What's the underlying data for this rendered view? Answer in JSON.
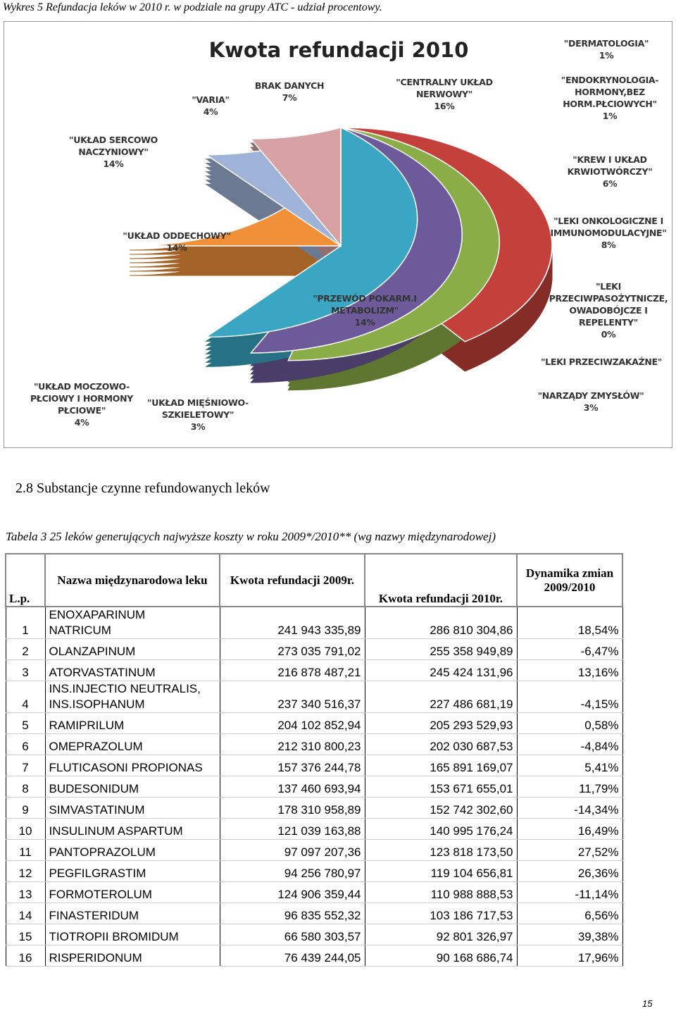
{
  "caption": "Wykres 5 Refundacja leków w 2010 r. w podziale na grupy ATC - udział procentowy.",
  "chart_data": {
    "type": "pie",
    "title": "Kwota refundacji 2010",
    "categories": [
      "\"CENTRALNY UKŁAD NERWOWY\"",
      "\"DERMATOLOGIA\"",
      "\"ENDOKRYNOLOGIA-HORMONY,BEZ HORM.PŁCIOWYCH\"",
      "\"KREW I UKŁAD KRWIOTWÓRCZY\"",
      "\"LEKI ONKOLOGICZNE I IMMUNOMODULACYJNE\"",
      "\"LEKI PRZECIWPASOŻYTNICZE, OWADOBÓJCZE I REPELENTY\"",
      "\"LEKI PRZECIWZAKAŹNE\"",
      "\"NARZĄDY ZMYSŁÓW\"",
      "\"PRZEWÓD POKARM.I METABOLIZM\"",
      "\"UKŁAD MIĘŚNIOWO-SZKIELETOWY\"",
      "\"UKŁAD MOCZOWO-PŁCIOWY I HORMONY PŁCIOWE\"",
      "\"UKŁAD ODDECHOWY\"",
      "\"UKŁAD SERCOWO NACZYNIOWY\"",
      "\"VARIA\"",
      "BRAK DANYCH"
    ],
    "values": [
      16,
      1,
      1,
      6,
      8,
      0,
      5,
      3,
      14,
      3,
      4,
      14,
      14,
      4,
      7
    ],
    "value_labels": [
      "16%",
      "1%",
      "1%",
      "6%",
      "8%",
      "0%",
      null,
      "3%",
      "14%",
      "3%",
      "4%",
      "14%",
      "14%",
      "4%",
      "7%"
    ],
    "colors": [
      "#3d6ba8",
      "#5f8a35",
      "#8aa33a",
      "#5e4a86",
      "#318da5",
      "#213e62",
      "#6e1f1f",
      "#c4403a",
      "#8bad48",
      "#6d5a9a",
      "#3aa6c4",
      "#f0913a",
      "#9fb2d8",
      "#d8a1a3",
      "#c5d5a6"
    ]
  },
  "section_heading": "2.8 Substancje czynne refundowanych leków",
  "table": {
    "caption": "Tabela 3 25 leków generujących najwyższe koszty w roku 2009*/2010** (wg nazwy międzynarodowej)",
    "headers": [
      "L.p.",
      "Nazwa międzynarodowa leku",
      "Kwota refundacji 2009r.",
      "Kwota refundacji 2010r.",
      "Dynamika zmian 2009/2010"
    ],
    "rows": [
      [
        "1",
        "ENOXAPARINUM\nNATRICUM",
        "241 943 335,89",
        "286 810 304,86",
        "18,54%"
      ],
      [
        "2",
        "OLANZAPINUM",
        "273 035 791,02",
        "255 358 949,89",
        "-6,47%"
      ],
      [
        "3",
        "ATORVASTATINUM",
        "216 878 487,21",
        "245 424 131,96",
        "13,16%"
      ],
      [
        "4",
        "INS.INJECTIO NEUTRALIS,\nINS.ISOPHANUM",
        "237 340 516,37",
        "227 486 681,19",
        "-4,15%"
      ],
      [
        "5",
        "RAMIPRILUM",
        "204 102 852,94",
        "205 293 529,93",
        "0,58%"
      ],
      [
        "6",
        "OMEPRAZOLUM",
        "212 310 800,23",
        "202 030 687,53",
        "-4,84%"
      ],
      [
        "7",
        "FLUTICASONI PROPIONAS",
        "157 376 244,78",
        "165 891 169,07",
        "5,41%"
      ],
      [
        "8",
        "BUDESONIDUM",
        "137 460 693,94",
        "153 671 655,01",
        "11,79%"
      ],
      [
        "9",
        "SIMVASTATINUM",
        "178 310 958,89",
        "152 742 302,60",
        "-14,34%"
      ],
      [
        "10",
        "INSULINUM ASPARTUM",
        "121 039 163,88",
        "140 995 176,24",
        "16,49%"
      ],
      [
        "11",
        "PANTOPRAZOLUM",
        "97 097 207,36",
        "123 818 173,50",
        "27,52%"
      ],
      [
        "12",
        "PEGFILGRASTIM",
        "94 256 780,97",
        "119 104 656,81",
        "26,36%"
      ],
      [
        "13",
        "FORMOTEROLUM",
        "124 906 359,44",
        "110 988 888,53",
        "-11,14%"
      ],
      [
        "14",
        "FINASTERIDUM",
        "96 835 552,32",
        "103 186 717,53",
        "6,56%"
      ],
      [
        "15",
        "TIOTROPII BROMIDUM",
        "66 580 303,57",
        "92 801 326,97",
        "39,38%"
      ],
      [
        "16",
        "RISPERIDONUM",
        "76 439 244,05",
        "90 168 686,74",
        "17,96%"
      ]
    ]
  },
  "page_number": "15"
}
